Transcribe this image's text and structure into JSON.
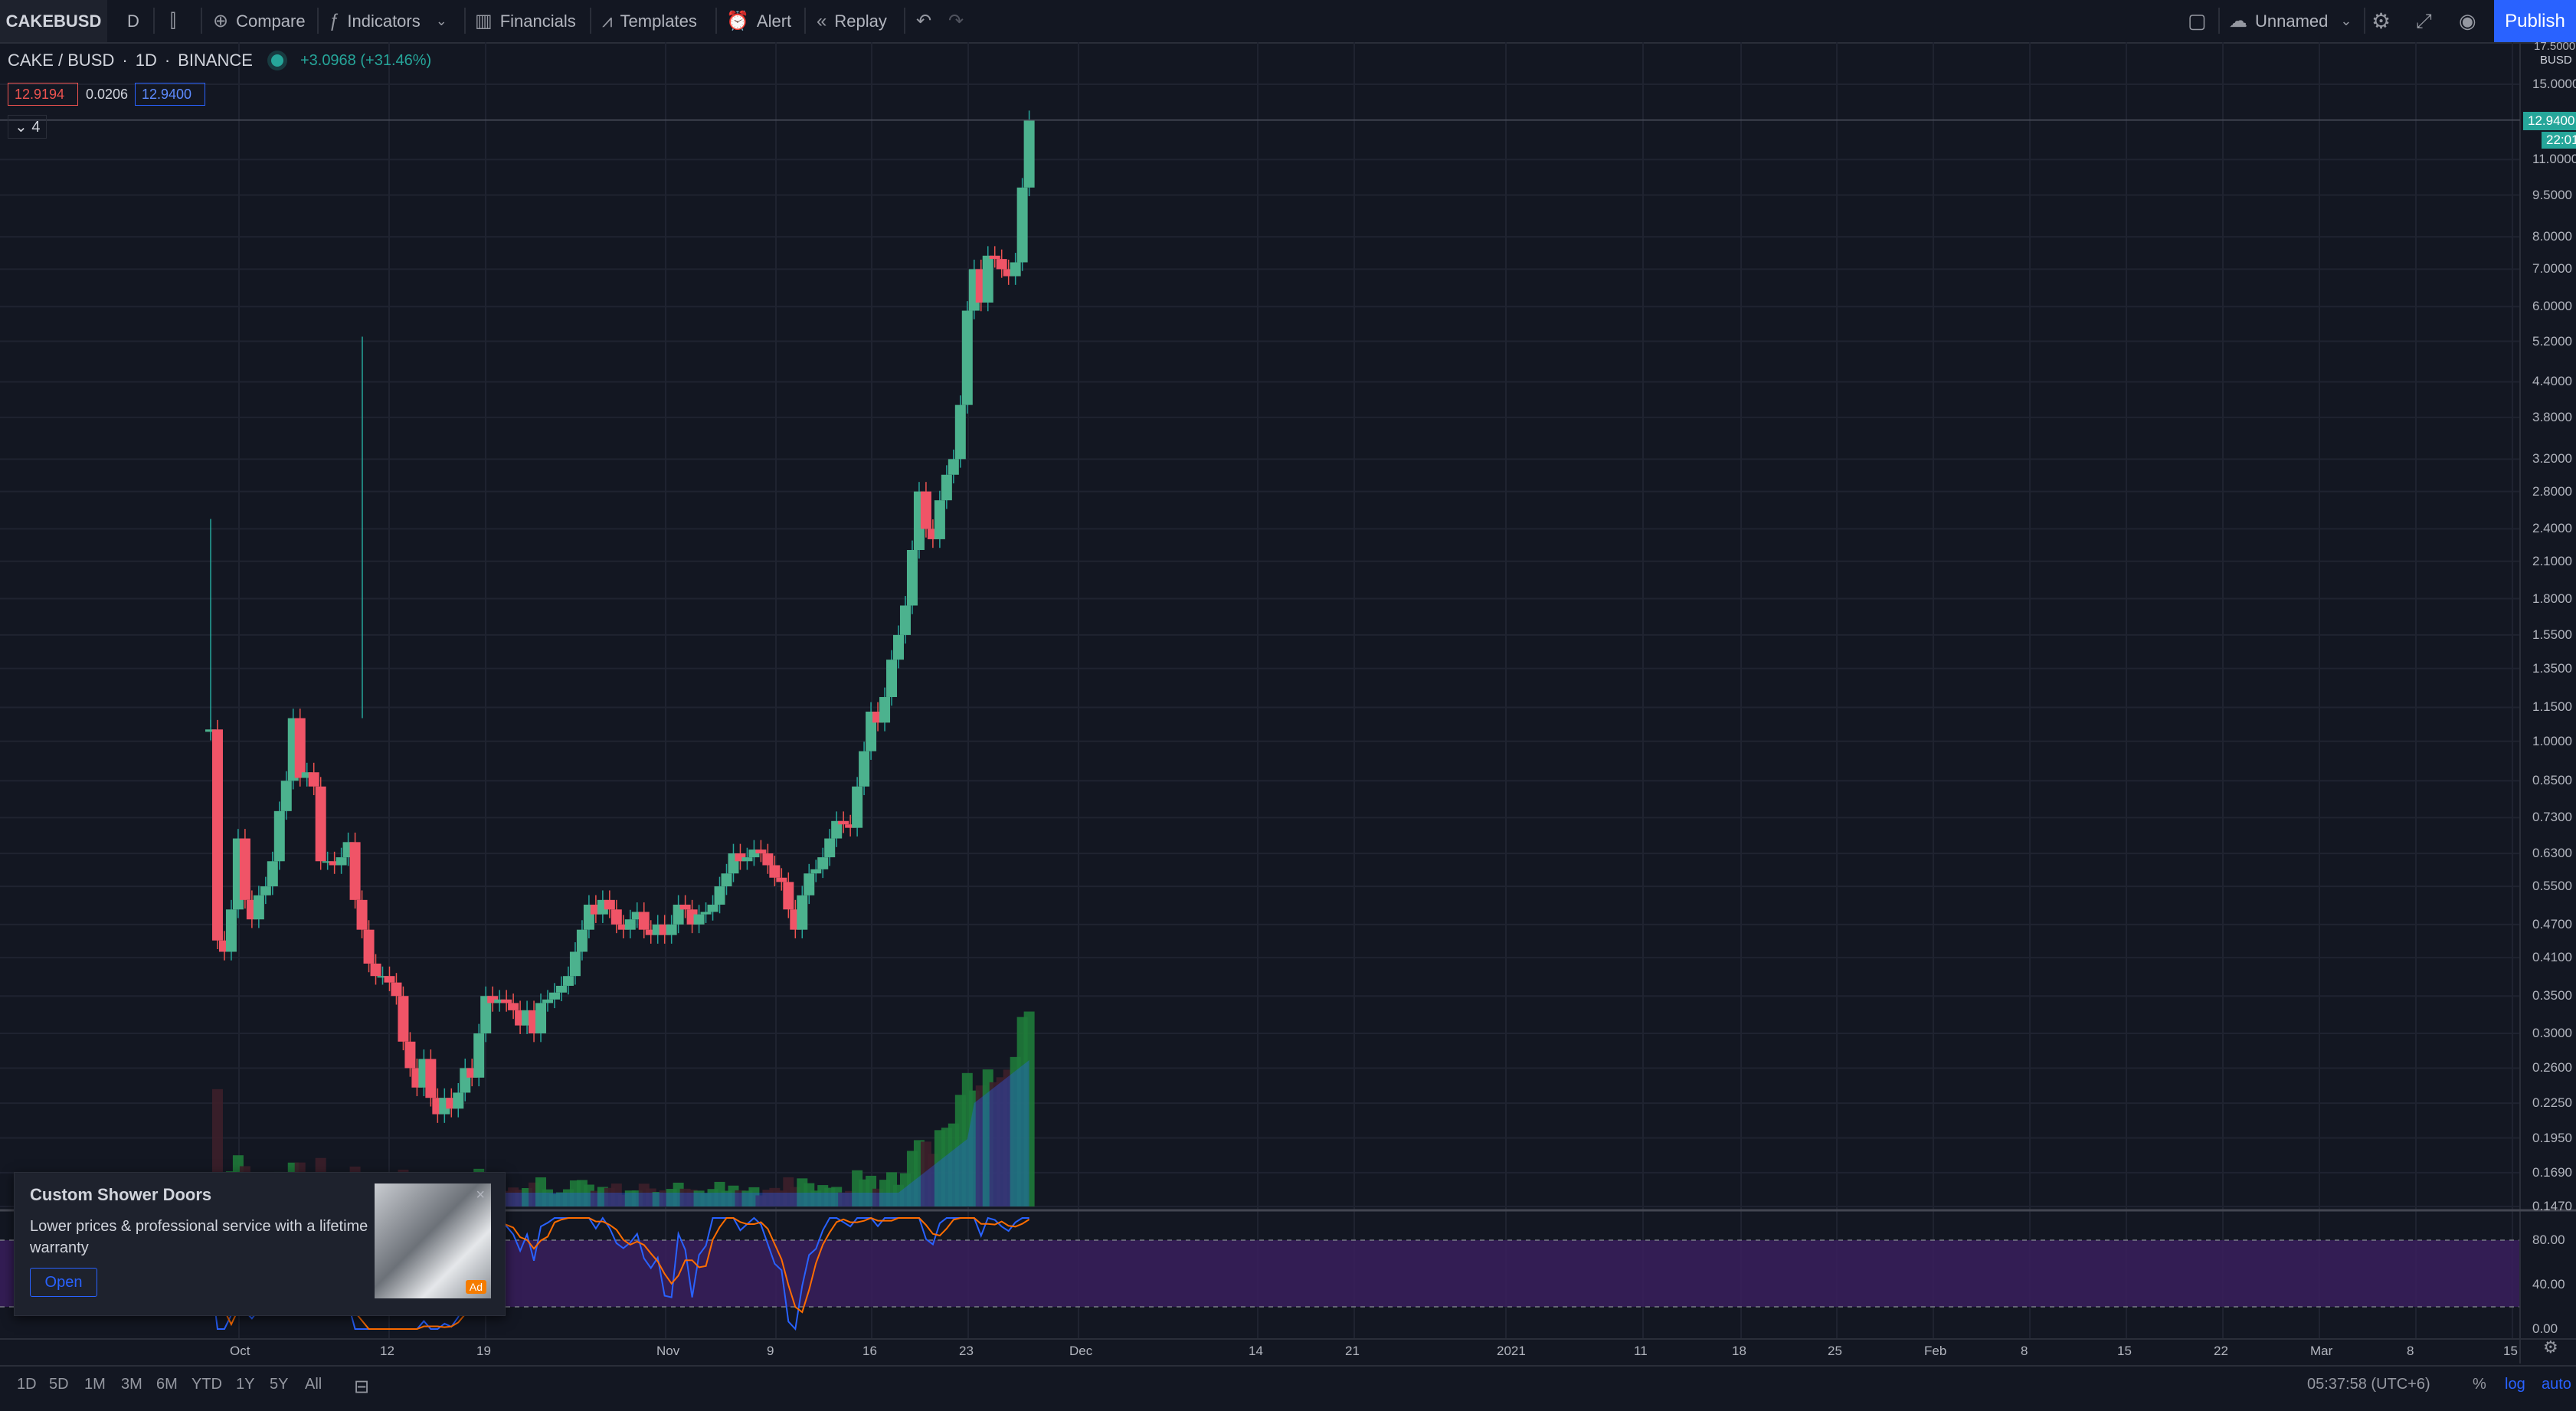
{
  "toolbar": {
    "symbol": "CAKEBUSD",
    "interval": "D",
    "compare": "Compare",
    "indicators": "Indicators",
    "financials": "Financials",
    "templates": "Templates",
    "alert": "Alert",
    "replay": "Replay",
    "layout_name": "Unnamed",
    "publish": "Publish"
  },
  "legend": {
    "pair": "CAKE / BUSD",
    "interval": "1D",
    "exchange": "BINANCE",
    "change": "+3.0968 (+31.46%)",
    "bid": "12.9194",
    "spread": "0.0206",
    "ask": "12.9400",
    "studies_count": "4"
  },
  "price_axis": {
    "currency_label": "BUSD",
    "top_label": "17.5000",
    "current_price": "12.9400",
    "countdown": "22:01",
    "ticks": [
      "15.0000",
      "11.0000",
      "9.5000",
      "8.0000",
      "7.0000",
      "6.0000",
      "5.2000",
      "4.4000",
      "3.8000",
      "3.2000",
      "2.8000",
      "2.4000",
      "2.1000",
      "1.8000",
      "1.5500",
      "1.3500",
      "1.1500",
      "1.0000",
      "0.8500",
      "0.7300",
      "0.6300",
      "0.5500",
      "0.4700",
      "0.4100",
      "0.3500",
      "0.3000",
      "0.2600",
      "0.2250",
      "0.1950",
      "0.1690",
      "0.1470"
    ],
    "osc_ticks": [
      "80.00",
      "40.00",
      "0.00"
    ]
  },
  "time_axis": {
    "ticks": [
      "Oct",
      "12",
      "19",
      "Nov",
      "9",
      "16",
      "23",
      "Dec",
      "14",
      "21",
      "2021",
      "11",
      "18",
      "25",
      "Feb",
      "8",
      "15",
      "22",
      "Mar",
      "8",
      "15"
    ]
  },
  "bottom": {
    "ranges": [
      "1D",
      "5D",
      "1M",
      "3M",
      "6M",
      "YTD",
      "1Y",
      "5Y",
      "All"
    ],
    "clock": "05:37:58 (UTC+6)",
    "pct": "%",
    "log": "log",
    "auto": "auto"
  },
  "ad": {
    "title": "Custom Shower Doors",
    "description": "Lower prices & professional service with a lifetime warranty",
    "button": "Open",
    "badge": "Ad"
  },
  "chart_data": {
    "type": "candlestick",
    "symbol": "CAKE / BUSD",
    "scale": "log",
    "x_ticks": [
      "Oct",
      "12",
      "19",
      "Nov",
      "9",
      "16",
      "23",
      "Dec",
      "14",
      "21",
      "2021",
      "11",
      "18",
      "25",
      "Feb",
      "8",
      "15",
      "22",
      "Mar",
      "8",
      "15"
    ],
    "close_prices": [
      1.05,
      0.44,
      0.42,
      0.5,
      0.67,
      0.52,
      0.48,
      0.53,
      0.55,
      0.61,
      0.75,
      0.85,
      1.1,
      0.86,
      0.88,
      0.83,
      0.61,
      0.61,
      0.6,
      0.62,
      0.66,
      0.52,
      0.46,
      0.4,
      0.38,
      0.38,
      0.37,
      0.35,
      0.29,
      0.26,
      0.24,
      0.27,
      0.23,
      0.215,
      0.23,
      0.22,
      0.235,
      0.26,
      0.25,
      0.3,
      0.35,
      0.34,
      0.345,
      0.34,
      0.33,
      0.31,
      0.33,
      0.3,
      0.34,
      0.345,
      0.355,
      0.365,
      0.38,
      0.42,
      0.46,
      0.51,
      0.49,
      0.52,
      0.5,
      0.47,
      0.46,
      0.48,
      0.495,
      0.46,
      0.45,
      0.47,
      0.45,
      0.47,
      0.51,
      0.5,
      0.47,
      0.49,
      0.495,
      0.51,
      0.55,
      0.58,
      0.63,
      0.61,
      0.62,
      0.64,
      0.63,
      0.6,
      0.57,
      0.56,
      0.5,
      0.46,
      0.53,
      0.58,
      0.59,
      0.62,
      0.67,
      0.72,
      0.71,
      0.7,
      0.83,
      0.96,
      1.13,
      1.08,
      1.2,
      1.4,
      1.55,
      1.75,
      2.2,
      2.8,
      2.4,
      2.3,
      2.7,
      3.0,
      3.2,
      4.0,
      5.9,
      7.0,
      6.1,
      7.4,
      7.3,
      7.0,
      6.8,
      7.2,
      9.8,
      12.94
    ],
    "volume_note": "volume histogram shown in lower pane of main chart",
    "oscillator": {
      "type": "stochastic",
      "levels": [
        80,
        20
      ],
      "range": [
        0,
        100
      ]
    }
  }
}
